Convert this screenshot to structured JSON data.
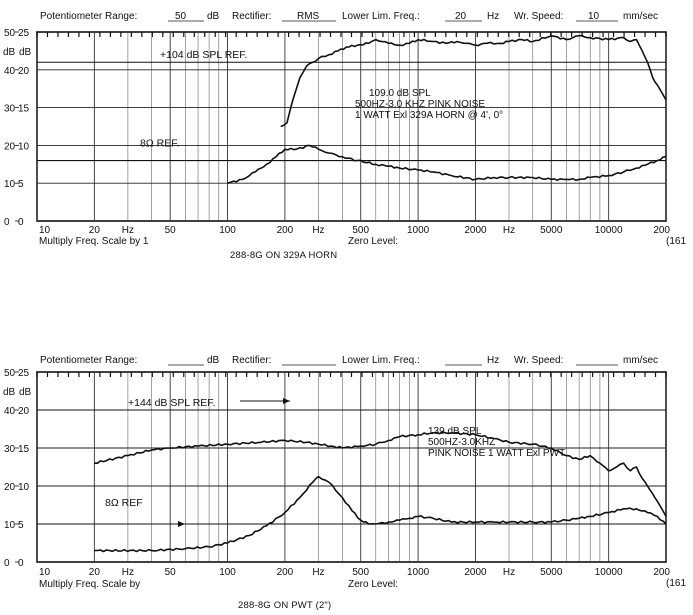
{
  "chart_data": [
    {
      "type": "line",
      "header": {
        "potentiometer_range_label": "Potentiometer Range:",
        "potentiometer_range_value": "50",
        "db_unit": "dB",
        "rectifier_label": "Rectifier:",
        "rectifier_value": "RMS",
        "lower_lim_label": "Lower Lim. Freq.:",
        "lower_lim_value": "20",
        "hz_unit": "Hz",
        "wr_speed_label": "Wr.  Speed:",
        "wr_speed_value": "10",
        "speed_unit": "mm/sec"
      },
      "y_ticks_outer": [
        "50",
        "40",
        "30",
        "20",
        "10",
        "0"
      ],
      "y_ticks_inner": [
        "25",
        "20",
        "15",
        "10",
        "5",
        "0"
      ],
      "y_axis_labels": [
        "dB",
        "dB"
      ],
      "x_tick_labels": [
        {
          "f": 10,
          "label": "10"
        },
        {
          "f": 20,
          "label": "20"
        },
        {
          "f": 50,
          "label": "50"
        },
        {
          "f": 100,
          "label": "100"
        },
        {
          "f": 200,
          "label": "200"
        },
        {
          "f": 500,
          "label": "500"
        },
        {
          "f": 1000,
          "label": "1000"
        },
        {
          "f": 2000,
          "label": "2000"
        },
        {
          "f": 5000,
          "label": "5000"
        },
        {
          "f": 10000,
          "label": "10000"
        },
        {
          "f": 20000,
          "label": "200"
        }
      ],
      "hz_marks": [
        {
          "f": 30,
          "label": "Hz"
        },
        {
          "f": 300,
          "label": "Hz"
        },
        {
          "f": 3000,
          "label": "Hz"
        }
      ],
      "edge_label": "(161",
      "footer_left": "Multiply Freq. Scale by 1",
      "footer_mid": "Zero Level:",
      "caption": "288-8G ON 329A HORN",
      "ref_lines": [
        {
          "label": "+104 dB SPL REF.",
          "db": 42
        },
        {
          "label": "8Ω REF.",
          "db": 16
        }
      ],
      "annotation": [
        "109.0 dB SPL",
        "500HZ-3.0 KHZ PINK NOISE",
        "1 WATT Exl 329A HORN @ 4', 0°"
      ],
      "xlim": [
        10,
        20000
      ],
      "ylim": [
        0,
        50
      ],
      "x_scale": "log",
      "series": [
        {
          "x": [
            190,
            205,
            220,
            240,
            260,
            280,
            300,
            340,
            380,
            420,
            480,
            550,
            600,
            700,
            800,
            900,
            1000,
            1200,
            1400,
            1600,
            1800,
            2000,
            2300,
            2700,
            3000,
            3500,
            4000,
            5000,
            6000,
            7000,
            8000,
            10000,
            12000,
            13000,
            14000,
            15000,
            16000,
            17000,
            18000,
            19000,
            20000
          ],
          "y": [
            25,
            26,
            32,
            38,
            41,
            42,
            43,
            44,
            45,
            46,
            46.5,
            47,
            48,
            47,
            46.5,
            47,
            48,
            47.5,
            47,
            47.5,
            47,
            46.5,
            47,
            47,
            47.5,
            48,
            47.5,
            49,
            48,
            49,
            48.5,
            48,
            48.5,
            47.5,
            48,
            45,
            42,
            38,
            36,
            34,
            32
          ]
        },
        {
          "x": [
            100,
            120,
            140,
            160,
            180,
            200,
            230,
            270,
            300,
            340,
            400,
            480,
            600,
            700,
            800,
            1000,
            1200,
            1500,
            2000,
            2500,
            3000,
            4000,
            5000,
            6000,
            7000,
            8000,
            10000,
            12000,
            14000,
            16000,
            18000,
            20000
          ],
          "y": [
            10,
            11,
            13,
            15,
            17,
            19,
            19,
            20,
            19,
            18,
            17,
            16,
            15,
            14.5,
            14,
            13.5,
            13,
            12,
            11,
            11.5,
            11.5,
            11.5,
            11,
            11,
            11,
            11.5,
            12,
            13,
            14,
            15,
            16,
            17
          ]
        }
      ]
    },
    {
      "type": "line",
      "header": {
        "potentiometer_range_label": "Potentiometer Range:",
        "potentiometer_range_value": "",
        "db_unit": "dB",
        "rectifier_label": "Rectifier:",
        "rectifier_value": "",
        "lower_lim_label": "Lower Lim. Freq.:",
        "lower_lim_value": "",
        "hz_unit": "Hz",
        "wr_speed_label": "Wr.  Speed:",
        "wr_speed_value": "",
        "speed_unit": "mm/sec"
      },
      "y_ticks_outer": [
        "50",
        "40",
        "30",
        "20",
        "10",
        "0"
      ],
      "y_ticks_inner": [
        "25",
        "20",
        "15",
        "10",
        "5",
        "0"
      ],
      "y_axis_labels": [
        "dB",
        "dB"
      ],
      "x_tick_labels": [
        {
          "f": 10,
          "label": "10"
        },
        {
          "f": 20,
          "label": "20"
        },
        {
          "f": 50,
          "label": "50"
        },
        {
          "f": 100,
          "label": "100"
        },
        {
          "f": 200,
          "label": "200"
        },
        {
          "f": 500,
          "label": "500"
        },
        {
          "f": 1000,
          "label": "1000"
        },
        {
          "f": 2000,
          "label": "2000"
        },
        {
          "f": 5000,
          "label": "5000"
        },
        {
          "f": 10000,
          "label": "10000"
        },
        {
          "f": 20000,
          "label": "200"
        }
      ],
      "hz_marks": [
        {
          "f": 30,
          "label": "Hz"
        },
        {
          "f": 300,
          "label": "Hz"
        },
        {
          "f": 3000,
          "label": "Hz"
        }
      ],
      "edge_label": "(161",
      "footer_left": "Multiply Freq. Scale by",
      "footer_mid": "Zero Level:",
      "caption": "288-8G ON PWT (2\")",
      "ref_lines": [
        {
          "label": "+144 dB SPL REF.",
          "db": 40
        },
        {
          "label": "8Ω REF",
          "db": 10
        }
      ],
      "annotation": [
        "139 dB SPL",
        "500HZ-3.0KHZ",
        "PINK NOISE 1 WATT Exl PWT."
      ],
      "xlim": [
        10,
        20000
      ],
      "ylim": [
        0,
        50
      ],
      "x_scale": "log",
      "series": [
        {
          "x": [
            20,
            30,
            40,
            50,
            70,
            100,
            150,
            200,
            260,
            300,
            350,
            400,
            500,
            600,
            700,
            800,
            1000,
            1200,
            1500,
            2000,
            2500,
            3000,
            4000,
            5000,
            6000,
            7000,
            8000,
            9000,
            10000,
            11000,
            12000,
            13000,
            14000,
            15000,
            16000,
            17000,
            18000,
            19000,
            20000
          ],
          "y": [
            26,
            28,
            29.5,
            30,
            30.5,
            31,
            31.5,
            32,
            31.5,
            31,
            30.5,
            30,
            30.5,
            31,
            32,
            33,
            33.5,
            34,
            34,
            33.5,
            32.5,
            31.5,
            31,
            30,
            28,
            27,
            28,
            26,
            24,
            25,
            26,
            24,
            25,
            22,
            20,
            18,
            16,
            14,
            12
          ]
        },
        {
          "x": [
            20,
            40,
            60,
            80,
            100,
            130,
            160,
            200,
            240,
            280,
            300,
            340,
            400,
            450,
            500,
            550,
            600,
            700,
            800,
            900,
            1000,
            1200,
            1500,
            2000,
            2500,
            3000,
            4000,
            5000,
            6000,
            7000,
            8000,
            10000,
            12000,
            14000,
            16000,
            18000,
            20000
          ],
          "y": [
            3,
            3,
            3.5,
            4,
            5,
            7,
            9.5,
            13,
            17,
            21,
            22.5,
            21,
            17,
            13.5,
            11,
            10,
            10,
            10.5,
            11,
            11.5,
            12,
            11.5,
            10.5,
            10.5,
            10.5,
            10.5,
            10.5,
            10.5,
            11,
            11.5,
            12,
            13,
            14,
            14,
            13,
            12,
            10
          ]
        }
      ]
    }
  ]
}
